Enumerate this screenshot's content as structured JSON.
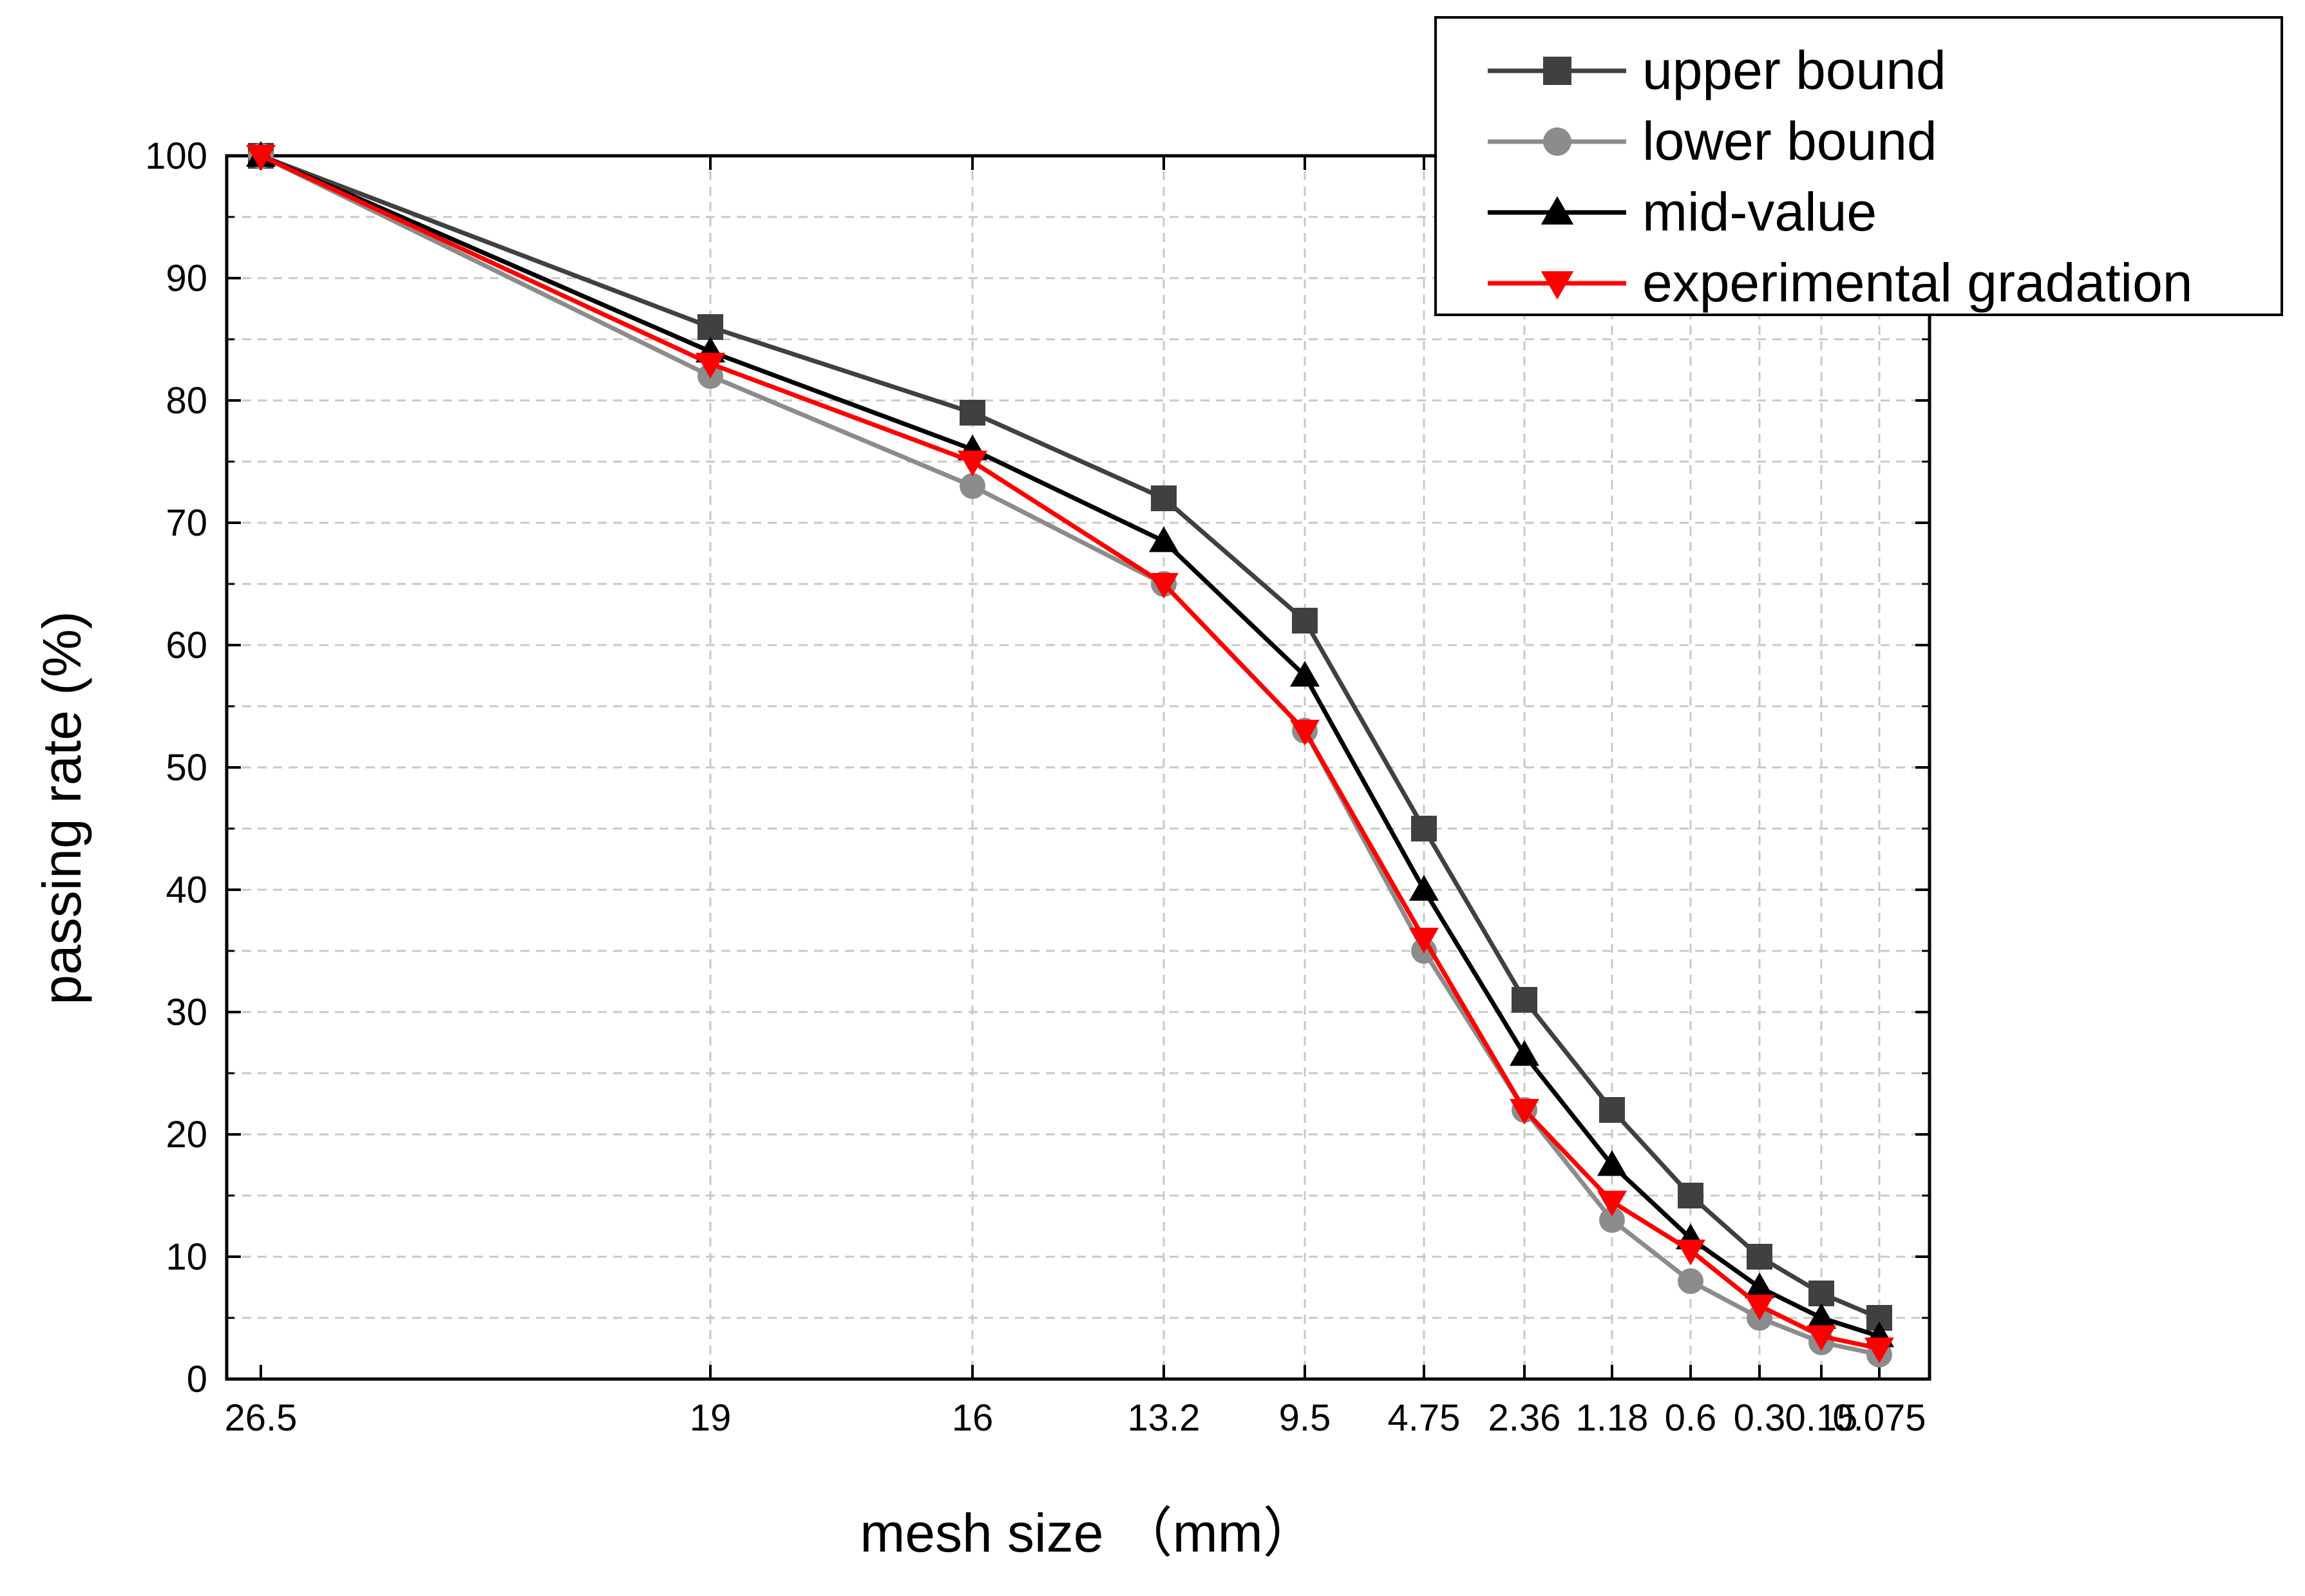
{
  "chart_data": {
    "type": "line",
    "title": "",
    "xlabel": "mesh size （mm）",
    "ylabel": "passing rate (%)",
    "ylim": [
      0,
      100
    ],
    "yticks": [
      0,
      10,
      20,
      30,
      40,
      50,
      60,
      70,
      80,
      90,
      100
    ],
    "x_scale": "categorical sieve sizes (non-uniform spacing)",
    "categories": [
      "26.5",
      "19",
      "16",
      "13.2",
      "9.5",
      "4.75",
      "2.36",
      "1.18",
      "0.6",
      "0.3",
      "0.15",
      "0.075"
    ],
    "x_tick_labels": [
      "26.5",
      "19",
      "16",
      "13.2",
      "9.5",
      "4.75",
      "2.36",
      "1.18",
      "0.6",
      "0.3",
      "0.15",
      "0.075"
    ],
    "grid": true,
    "legend_position": "top-right",
    "series": [
      {
        "name": "upper bound",
        "color": "#404040",
        "marker": "square",
        "values": [
          100,
          86,
          79,
          72,
          62,
          45,
          31,
          22,
          15,
          10,
          7,
          5
        ]
      },
      {
        "name": "lower bound",
        "color": "#8c8c8c",
        "marker": "circle",
        "values": [
          100,
          82,
          73,
          65,
          53,
          35,
          22,
          13,
          8,
          5,
          3,
          2
        ]
      },
      {
        "name": "mid-value",
        "color": "#000000",
        "marker": "triangle-up",
        "values": [
          100,
          84,
          76,
          68.5,
          57.5,
          40,
          26.5,
          17.5,
          11.5,
          7.5,
          5,
          3.5
        ]
      },
      {
        "name": "experimental gradation",
        "color": "#ff0000",
        "marker": "triangle-down",
        "values": [
          100,
          83,
          75,
          65,
          53,
          36,
          22,
          14.5,
          10.5,
          6,
          3.5,
          2.5
        ]
      }
    ]
  }
}
